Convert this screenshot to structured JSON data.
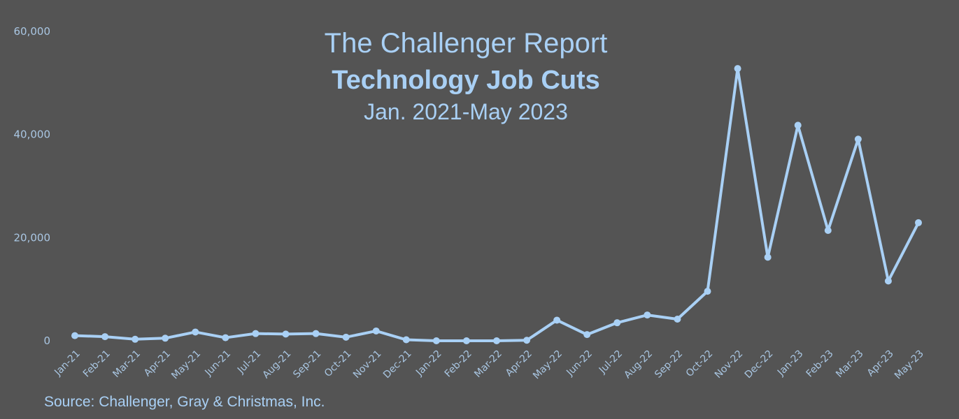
{
  "chart_data": {
    "type": "line",
    "title": "The Challenger Report",
    "subtitle": "Technology Job Cuts",
    "subtitle2": "Jan. 2021-May 2023",
    "source": "Source: Challenger, Gray & Christmas, Inc.",
    "xlabel": "",
    "ylabel": "",
    "ylim": [
      0,
      60000
    ],
    "yticks": [
      0,
      20000,
      40000,
      60000
    ],
    "ytick_labels": [
      "0",
      "20,000",
      "40,000",
      "60,000"
    ],
    "grid": false,
    "legend": "none",
    "line_color": "#a9d0f5",
    "categories": [
      "Jan-21",
      "Feb-21",
      "Mar-21",
      "Apr-21",
      "May-21",
      "Jun-21",
      "Jul-21",
      "Aug-21",
      "Sep-21",
      "Oct-21",
      "Nov-21",
      "Dec-21",
      "Jan-22",
      "Feb-22",
      "Mar-22",
      "Apr-22",
      "May-22",
      "Jun-22",
      "Jul-22",
      "Aug-22",
      "Sep-22",
      "Oct-22",
      "Nov-22",
      "Dec-22",
      "Jan-23",
      "Feb-23",
      "Mar-23",
      "Apr-23",
      "May-23"
    ],
    "series": [
      {
        "values": [
          1000,
          800,
          300,
          500,
          1700,
          600,
          1400,
          1300,
          1400,
          700,
          1900,
          200,
          0,
          0,
          0,
          100,
          4000,
          1200,
          3500,
          5000,
          4200,
          9600,
          52800,
          16200,
          41800,
          21400,
          39100,
          11600,
          22900
        ]
      }
    ]
  }
}
